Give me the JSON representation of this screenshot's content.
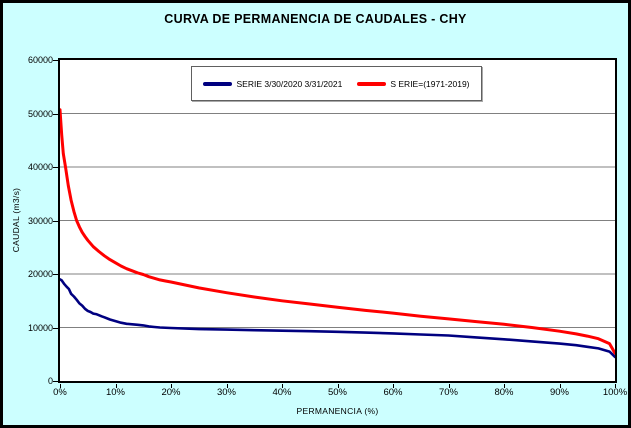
{
  "window": {
    "background": "#CCFFFF",
    "border_color": "#000000",
    "plot_background": "#FFFFFF",
    "plot_border_color": "#000000",
    "gridline_color": "#808080"
  },
  "title": "CURVA DE PERMANENCIA DE CAUDALES - CHY",
  "legend": {
    "items": [
      {
        "label": "SERIE 3/30/2020 3/31/2021",
        "color": "#000080"
      },
      {
        "label": "S ERIE=(1971-2019)",
        "color": "#FF0000"
      }
    ]
  },
  "chart_data": {
    "type": "line",
    "title": "CURVA DE PERMANENCIA DE CAUDALES - CHY",
    "xlabel": "PERMANENCIA (%)",
    "ylabel": "CAUDAL (m3/s)",
    "xlim": [
      0,
      100
    ],
    "ylim": [
      0,
      60000
    ],
    "x_tick_labels": [
      "0%",
      "10%",
      "20%",
      "30%",
      "40%",
      "50%",
      "60%",
      "70%",
      "80%",
      "90%",
      "100%"
    ],
    "x_tick_values": [
      0,
      10,
      20,
      30,
      40,
      50,
      60,
      70,
      80,
      90,
      100
    ],
    "y_tick_values": [
      0,
      10000,
      20000,
      30000,
      40000,
      50000,
      60000
    ],
    "gridline_values": [
      10000,
      20000,
      30000,
      40000,
      50000
    ],
    "grid": "horizontal-major",
    "legend_position": "top-center-inside",
    "series": [
      {
        "name": "SERIE 3/30/2020 3/31/2021",
        "color": "#000080",
        "width": 2.6,
        "x": [
          0,
          0.3,
          0.8,
          1.2,
          1.6,
          2,
          2.5,
          3,
          3.5,
          4,
          4.5,
          5,
          5.5,
          6,
          6.5,
          7,
          7.5,
          8,
          9,
          10,
          11,
          12,
          13,
          14,
          15,
          16,
          17,
          18,
          20,
          25,
          30,
          35,
          40,
          45,
          50,
          55,
          60,
          65,
          70,
          75,
          80,
          85,
          90,
          93,
          95,
          97,
          99,
          100
        ],
        "y": [
          19000,
          18800,
          18100,
          17600,
          17200,
          16300,
          15800,
          15200,
          14500,
          14100,
          13500,
          13100,
          12900,
          12600,
          12500,
          12300,
          12100,
          11900,
          11500,
          11200,
          10900,
          10700,
          10600,
          10500,
          10400,
          10200,
          10100,
          10000,
          9900,
          9700,
          9600,
          9500,
          9400,
          9300,
          9200,
          9050,
          8900,
          8700,
          8500,
          8150,
          7800,
          7400,
          7000,
          6700,
          6400,
          6100,
          5500,
          4500
        ]
      },
      {
        "name": "S ERIE=(1971-2019)",
        "color": "#FF0000",
        "width": 3,
        "x": [
          0,
          0.3,
          0.6,
          1,
          1.5,
          2,
          2.5,
          3,
          3.5,
          4,
          4.5,
          5,
          6,
          7,
          8,
          9,
          10,
          11,
          12,
          13,
          14,
          15,
          16,
          17,
          18,
          19,
          20,
          25,
          30,
          35,
          40,
          45,
          50,
          55,
          60,
          65,
          70,
          75,
          80,
          85,
          90,
          93,
          95,
          97,
          99,
          100
        ],
        "y": [
          50700,
          46000,
          42500,
          40000,
          36500,
          33800,
          31700,
          30000,
          28800,
          27800,
          27000,
          26300,
          25100,
          24200,
          23400,
          22700,
          22100,
          21500,
          21000,
          20600,
          20200,
          19900,
          19500,
          19200,
          18900,
          18700,
          18500,
          17400,
          16500,
          15700,
          15000,
          14400,
          13800,
          13200,
          12700,
          12100,
          11600,
          11100,
          10600,
          10000,
          9300,
          8800,
          8400,
          7900,
          7000,
          5200
        ]
      }
    ]
  }
}
